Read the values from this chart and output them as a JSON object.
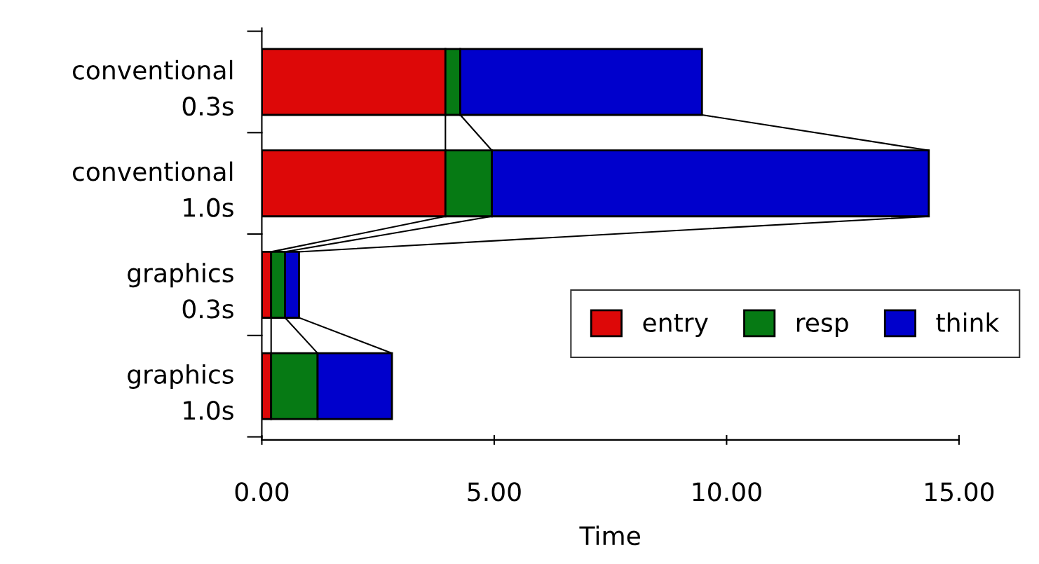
{
  "chart_data": {
    "type": "bar",
    "orientation": "horizontal",
    "stacked": true,
    "xlabel": "Time",
    "categories": [
      "conventional\n0.3s",
      "conventional\n1.0s",
      "graphics\n0.3s",
      "graphics\n1.0s"
    ],
    "series": [
      {
        "name": "entry",
        "color": "#dd0808",
        "values": [
          3.95,
          3.95,
          0.2,
          0.2
        ]
      },
      {
        "name": "resp",
        "color": "#067a14",
        "values": [
          0.32,
          1.0,
          0.3,
          1.0
        ]
      },
      {
        "name": "think",
        "color": "#0000cc",
        "values": [
          5.2,
          9.4,
          0.3,
          1.6
        ]
      }
    ],
    "xlim": [
      0,
      15
    ],
    "xticks": [
      {
        "value": 0,
        "label": "0.00"
      },
      {
        "value": 5,
        "label": "5.00"
      },
      {
        "value": 10,
        "label": "10.00"
      },
      {
        "value": 15,
        "label": "15.00"
      }
    ],
    "grid": false,
    "legend": "bottom right"
  }
}
